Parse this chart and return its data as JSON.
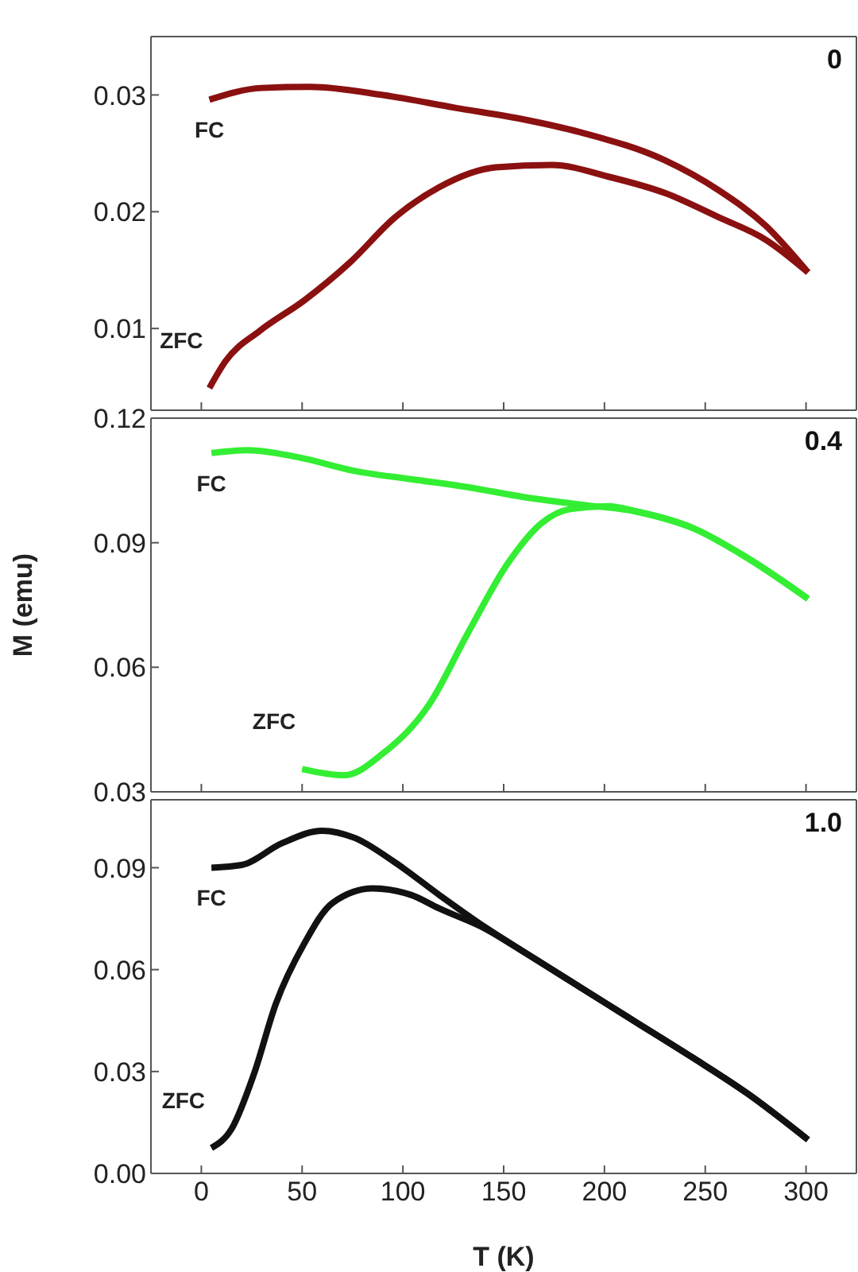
{
  "chart_data": [
    {
      "type": "line",
      "annotations": [
        "0"
      ],
      "xlim": [
        -25,
        325
      ],
      "xticks": [
        0,
        50,
        100,
        150,
        200,
        250,
        300
      ],
      "ylim": [
        0.003,
        0.035
      ],
      "yticks": [
        0.01,
        0.02,
        0.03
      ],
      "tick_labels": "y",
      "marker": "none",
      "line_style": "solid",
      "series": [
        {
          "name": "FC",
          "color": "#8b1010",
          "x": [
            4,
            30,
            54,
            90,
            126,
            160,
            188,
            230,
            257,
            280,
            301
          ],
          "values": [
            0.0296,
            0.0306,
            0.0307,
            0.03,
            0.0289,
            0.0279,
            0.0268,
            0.0244,
            0.0218,
            0.0188,
            0.0148
          ]
        },
        {
          "name": "ZFC",
          "color": "#8b1010",
          "x": [
            4,
            12,
            29,
            51,
            74,
            96,
            118,
            146,
            174,
            202,
            230,
            257,
            280,
            301
          ],
          "values": [
            0.0049,
            0.0072,
            0.0098,
            0.0124,
            0.0157,
            0.0195,
            0.0221,
            0.0238,
            0.024,
            0.023,
            0.0216,
            0.0195,
            0.0176,
            0.0148
          ]
        }
      ]
    },
    {
      "type": "line",
      "ylabel": "M (emu)",
      "annotations": [
        "0.4"
      ],
      "xlim": [
        -25,
        325
      ],
      "xticks": [
        0,
        50,
        100,
        150,
        200,
        250,
        300
      ],
      "ylim": [
        0.03,
        0.12
      ],
      "yticks": [
        0.03,
        0.06,
        0.09,
        0.12
      ],
      "tick_labels": "y",
      "marker": "none",
      "line_style": "solid",
      "series": [
        {
          "name": "FC",
          "color": "#33ee33",
          "x": [
            5,
            23,
            48,
            76,
            104,
            132,
            160,
            188,
            216,
            244,
            271,
            301
          ],
          "values": [
            0.1116,
            0.1123,
            0.1106,
            0.1073,
            0.1053,
            0.1034,
            0.101,
            0.0992,
            0.0975,
            0.0935,
            0.0863,
            0.0765
          ]
        },
        {
          "name": "ZFC",
          "color": "#33ee33",
          "x": [
            50,
            71,
            90,
            113,
            132,
            152,
            169,
            183,
            202,
            216,
            244,
            271,
            301
          ],
          "values": [
            0.0355,
            0.034,
            0.0392,
            0.051,
            0.068,
            0.085,
            0.0948,
            0.0981,
            0.0988,
            0.0975,
            0.0935,
            0.0863,
            0.0765
          ]
        }
      ]
    },
    {
      "type": "line",
      "xlabel": "T (K)",
      "annotations": [
        "1.0"
      ],
      "xlim": [
        -25,
        325
      ],
      "xticks": [
        0,
        50,
        100,
        150,
        200,
        250,
        300
      ],
      "ylim": [
        0,
        0.11
      ],
      "yticks": [
        {
          "value": 0,
          "label": "0.00"
        },
        0.03,
        0.06,
        0.09
      ],
      "marker": "none",
      "line_style": "solid",
      "series": [
        {
          "name": "FC",
          "color": "#111111",
          "x": [
            5,
            20,
            40,
            60,
            76,
            96,
            118,
            141,
            160,
            188,
            216,
            244,
            271,
            301
          ],
          "values": [
            0.09,
            0.0908,
            0.0972,
            0.1009,
            0.0988,
            0.0916,
            0.082,
            0.0724,
            0.0652,
            0.0548,
            0.0444,
            0.034,
            0.0235,
            0.0099
          ]
        },
        {
          "name": "ZFC",
          "color": "#111111",
          "x": [
            5,
            15,
            26,
            37,
            51,
            65,
            85,
            104,
            118,
            141,
            160,
            188,
            216,
            244,
            271,
            301
          ],
          "values": [
            0.0075,
            0.0131,
            0.0291,
            0.05,
            0.0676,
            0.0796,
            0.0839,
            0.082,
            0.078,
            0.072,
            0.0652,
            0.0548,
            0.0444,
            0.034,
            0.0235,
            0.0099
          ]
        }
      ]
    }
  ]
}
